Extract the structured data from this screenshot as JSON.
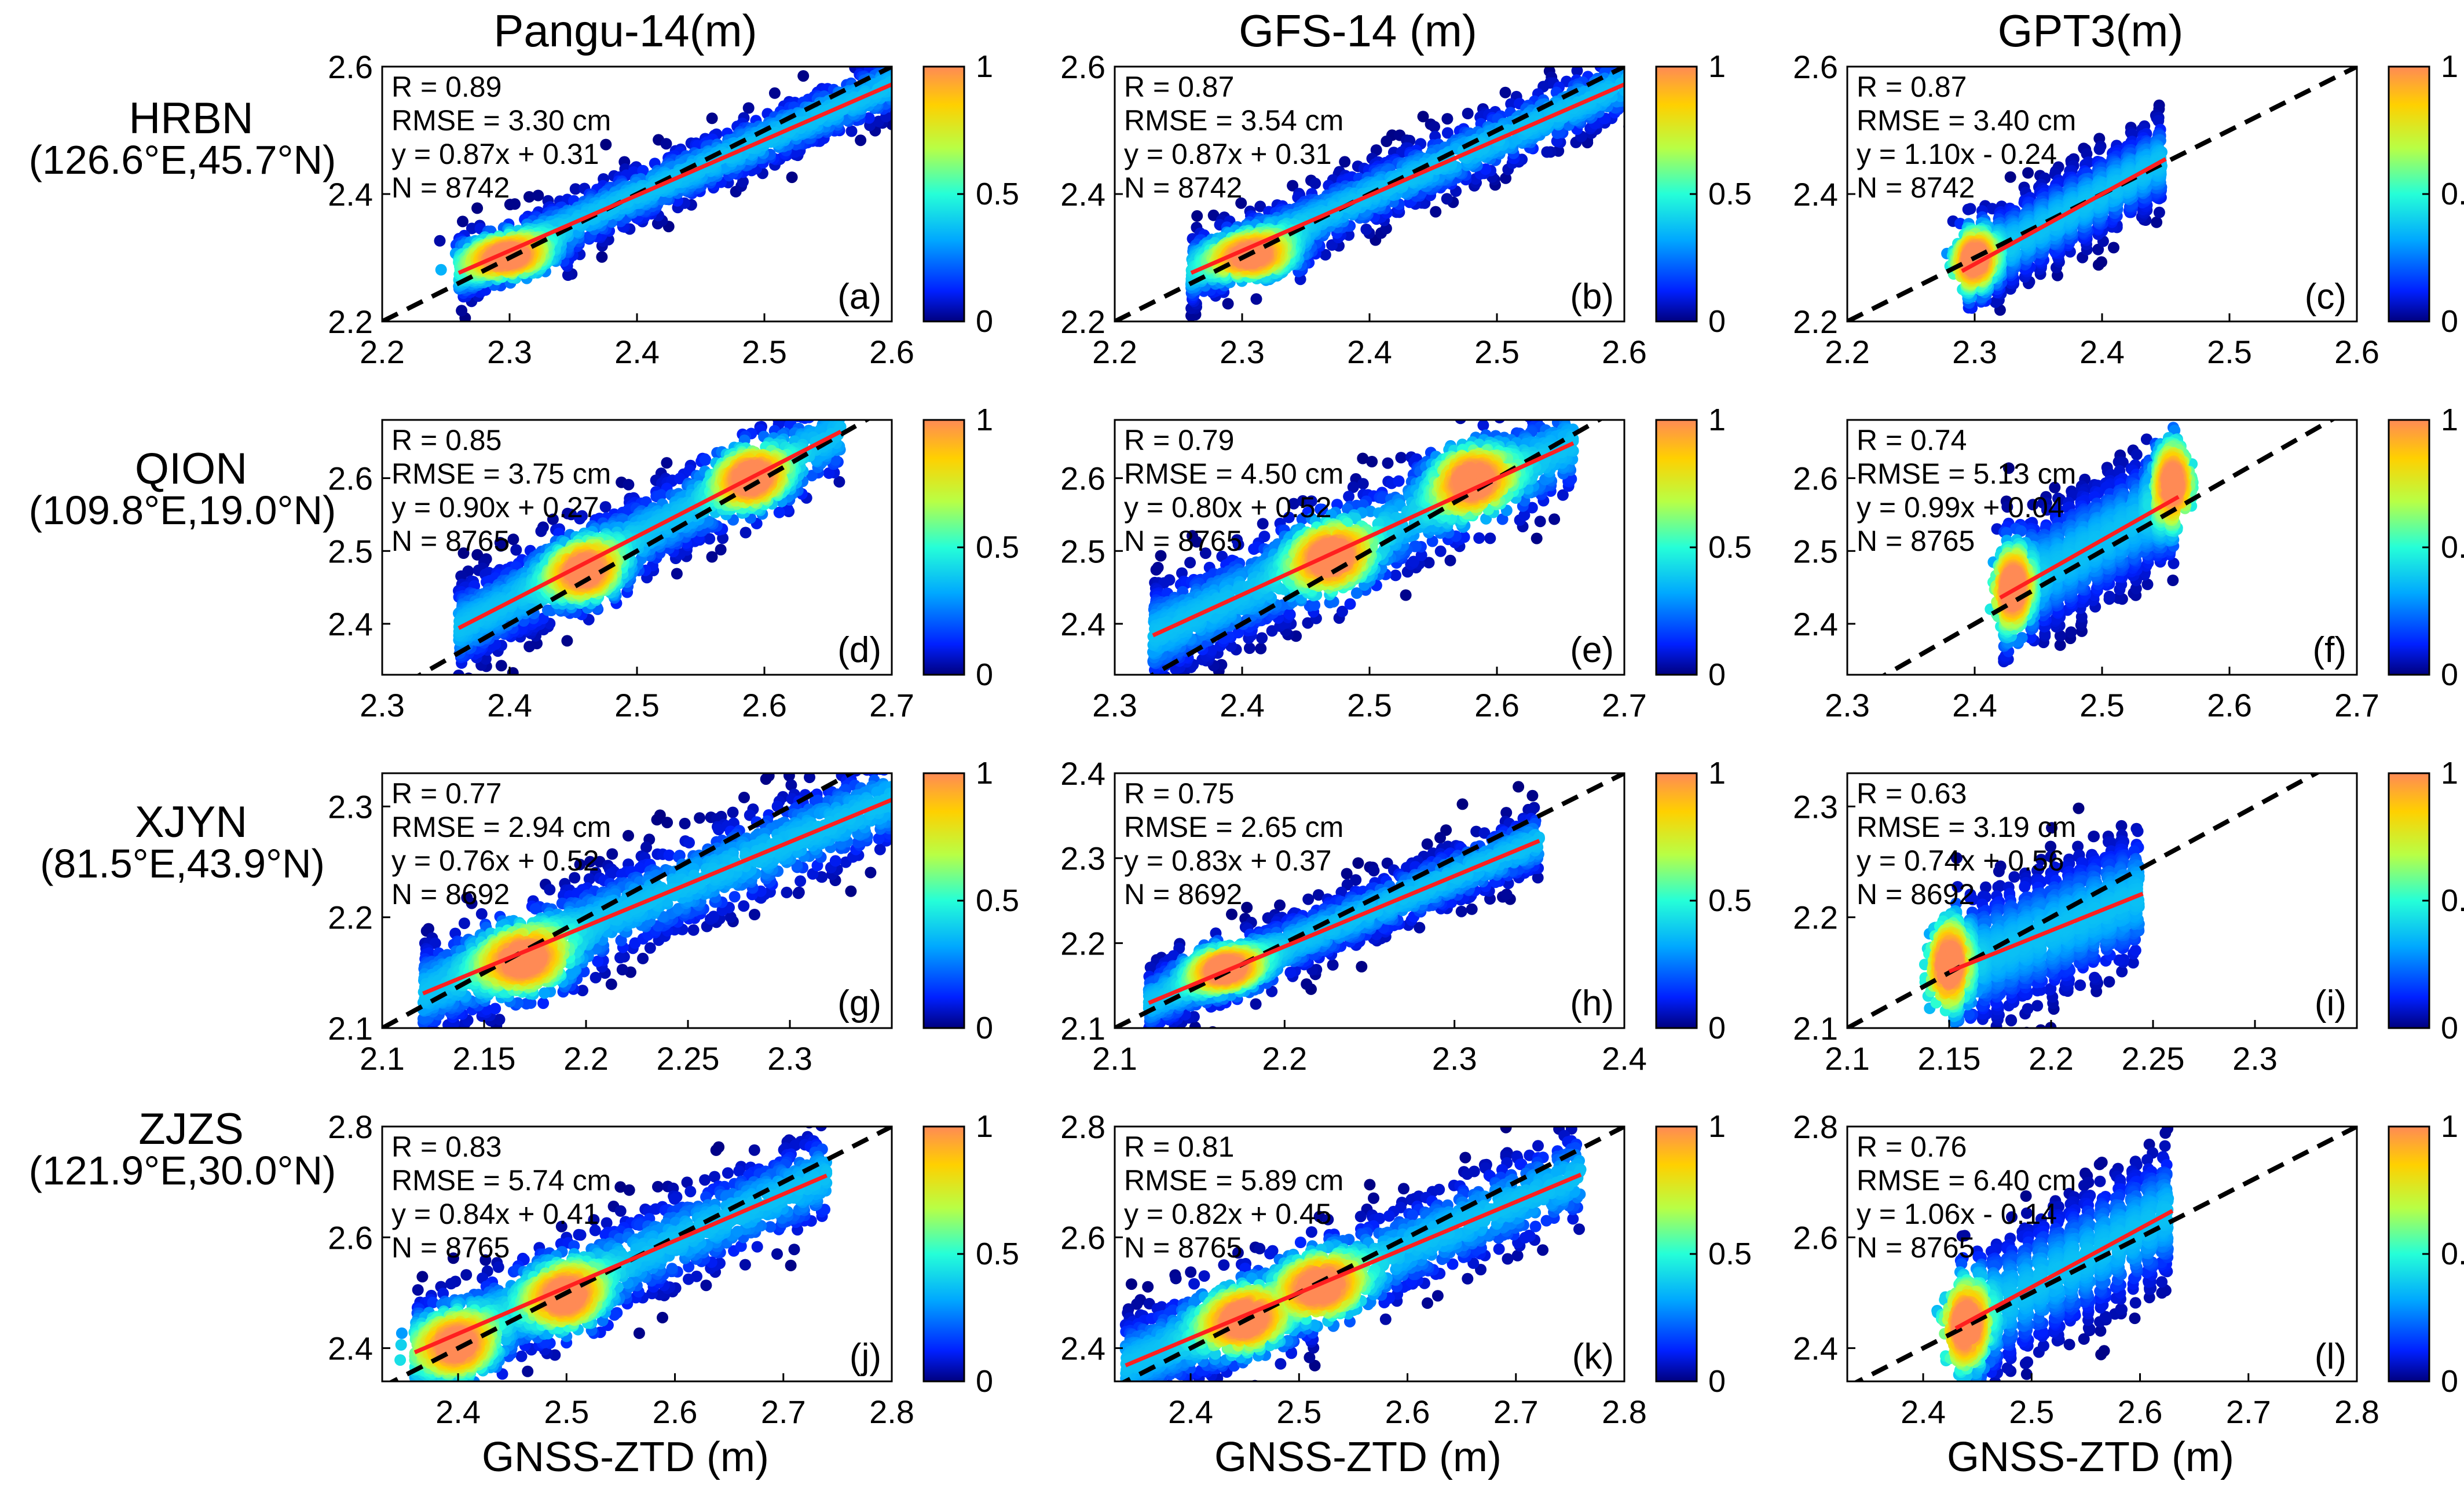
{
  "column_titles": [
    "Pangu-14(m)",
    "GFS-14 (m)",
    "GPT3(m)"
  ],
  "row_labels": [
    {
      "station": "HRBN",
      "coords": "(126.6°E,45.7°N)"
    },
    {
      "station": "QION",
      "coords": "(109.8°E,19.0°N)"
    },
    {
      "station": "XJYN",
      "coords": "(81.5°E,43.9°N)"
    },
    {
      "station": "ZJZS",
      "coords": "(121.9°E,30.0°N)"
    }
  ],
  "xlabel": "GNSS-ZTD (m)",
  "colorbar": {
    "ticks": [
      "0",
      "0.5",
      "1"
    ],
    "range": [
      0,
      1
    ]
  },
  "colors": {
    "fit_line": "#ff1f1f",
    "identity_line": "#000000",
    "cmap": [
      "#00007f",
      "#0020ff",
      "#00a8ff",
      "#25ffd8",
      "#b8ff45",
      "#ffd000",
      "#ff8a55"
    ]
  },
  "chart_data": [
    {
      "type": "scatter",
      "panel": "(a)",
      "row": 0,
      "col": 0,
      "xlim": [
        2.2,
        2.6
      ],
      "ylim": [
        2.2,
        2.6
      ],
      "xticks": [
        "2.2",
        "2.3",
        "2.4",
        "2.5",
        "2.6"
      ],
      "yticks": [
        "2.2",
        "2.4",
        "2.6"
      ],
      "stats": [
        "R = 0.89",
        "RMSE = 3.30 cm",
        "y = 0.87x + 0.31",
        "N = 8742"
      ],
      "fit": {
        "slope": 0.87,
        "intercept": 0.31
      },
      "data_range": [
        2.26,
        2.62
      ],
      "hotspots": [
        [
          2.3,
          2.3
        ]
      ],
      "spread": 0.028,
      "style": "normal"
    },
    {
      "type": "scatter",
      "panel": "(b)",
      "row": 0,
      "col": 1,
      "xlim": [
        2.2,
        2.6
      ],
      "ylim": [
        2.2,
        2.6
      ],
      "xticks": [
        "2.2",
        "2.3",
        "2.4",
        "2.5",
        "2.6"
      ],
      "yticks": [
        "2.2",
        "2.4",
        "2.6"
      ],
      "stats": [
        "R = 0.87",
        "RMSE = 3.54 cm",
        "y = 0.87x + 0.31",
        "N = 8742"
      ],
      "fit": {
        "slope": 0.87,
        "intercept": 0.31
      },
      "data_range": [
        2.26,
        2.62
      ],
      "hotspots": [
        [
          2.31,
          2.3
        ]
      ],
      "spread": 0.03,
      "style": "normal"
    },
    {
      "type": "scatter",
      "panel": "(c)",
      "row": 0,
      "col": 2,
      "xlim": [
        2.2,
        2.6
      ],
      "ylim": [
        2.2,
        2.6
      ],
      "xticks": [
        "2.2",
        "2.3",
        "2.4",
        "2.5",
        "2.6"
      ],
      "yticks": [
        "2.2",
        "2.4",
        "2.6"
      ],
      "stats": [
        "R = 0.87",
        "RMSE = 3.40 cm",
        "y = 1.10x - 0.24",
        "N = 8742"
      ],
      "fit": {
        "slope": 1.1,
        "intercept": -0.24
      },
      "data_range": [
        2.29,
        2.45
      ],
      "hotspots": [
        [
          2.3,
          2.3
        ]
      ],
      "spread": 0.04,
      "style": "columns"
    },
    {
      "type": "scatter",
      "panel": "(d)",
      "row": 1,
      "col": 0,
      "xlim": [
        2.3,
        2.7
      ],
      "ylim": [
        2.33,
        2.68
      ],
      "xticks": [
        "2.3",
        "2.4",
        "2.5",
        "2.6",
        "2.7"
      ],
      "yticks": [
        "2.4",
        "2.5",
        "2.6"
      ],
      "stats": [
        "R = 0.85",
        "RMSE = 3.75 cm",
        "y = 0.90x + 0.27",
        "N = 8765"
      ],
      "fit": {
        "slope": 0.9,
        "intercept": 0.27
      },
      "data_range": [
        2.36,
        2.66
      ],
      "hotspots": [
        [
          2.46,
          2.47
        ],
        [
          2.59,
          2.6
        ]
      ],
      "spread": 0.035,
      "style": "normal"
    },
    {
      "type": "scatter",
      "panel": "(e)",
      "row": 1,
      "col": 1,
      "xlim": [
        2.3,
        2.7
      ],
      "ylim": [
        2.33,
        2.68
      ],
      "xticks": [
        "2.3",
        "2.4",
        "2.5",
        "2.6",
        "2.7"
      ],
      "yticks": [
        "2.4",
        "2.5",
        "2.6"
      ],
      "stats": [
        "R = 0.79",
        "RMSE = 4.50 cm",
        "y = 0.80x + 0.52",
        "N = 8765"
      ],
      "fit": {
        "slope": 0.8,
        "intercept": 0.52
      },
      "data_range": [
        2.33,
        2.66
      ],
      "hotspots": [
        [
          2.47,
          2.49
        ],
        [
          2.58,
          2.6
        ]
      ],
      "spread": 0.04,
      "style": "normal"
    },
    {
      "type": "scatter",
      "panel": "(f)",
      "row": 1,
      "col": 2,
      "xlim": [
        2.3,
        2.7
      ],
      "ylim": [
        2.33,
        2.68
      ],
      "xticks": [
        "2.3",
        "2.4",
        "2.5",
        "2.6",
        "2.7"
      ],
      "yticks": [
        "2.4",
        "2.5",
        "2.6"
      ],
      "stats": [
        "R = 0.74",
        "RMSE = 5.13 cm",
        "y = 0.99x + 0.04",
        "N = 8765"
      ],
      "fit": {
        "slope": 0.99,
        "intercept": 0.04
      },
      "data_range": [
        2.42,
        2.56
      ],
      "hotspots": [
        [
          2.43,
          2.45
        ],
        [
          2.555,
          2.6
        ]
      ],
      "spread": 0.05,
      "style": "columns"
    },
    {
      "type": "scatter",
      "panel": "(g)",
      "row": 2,
      "col": 0,
      "xlim": [
        2.1,
        2.35
      ],
      "ylim": [
        2.1,
        2.33
      ],
      "xticks": [
        "2.1",
        "2.15",
        "2.2",
        "2.25",
        "2.3"
      ],
      "yticks": [
        "2.1",
        "2.2",
        "2.3"
      ],
      "stats": [
        "R = 0.77",
        "RMSE = 2.94 cm",
        "y = 0.76x + 0.52",
        "N = 8692"
      ],
      "fit": {
        "slope": 0.76,
        "intercept": 0.52
      },
      "data_range": [
        2.12,
        2.35
      ],
      "hotspots": [
        [
          2.17,
          2.16
        ]
      ],
      "spread": 0.025,
      "style": "normal"
    },
    {
      "type": "scatter",
      "panel": "(h)",
      "row": 2,
      "col": 1,
      "xlim": [
        2.1,
        2.4
      ],
      "ylim": [
        2.1,
        2.4
      ],
      "xticks": [
        "2.1",
        "2.2",
        "2.3",
        "2.4"
      ],
      "yticks": [
        "2.1",
        "2.2",
        "2.3",
        "2.4"
      ],
      "stats": [
        "R = 0.75",
        "RMSE = 2.65 cm",
        "y = 0.83x + 0.37",
        "N = 8692"
      ],
      "fit": {
        "slope": 0.83,
        "intercept": 0.37
      },
      "data_range": [
        2.12,
        2.35
      ],
      "hotspots": [
        [
          2.165,
          2.17
        ]
      ],
      "spread": 0.022,
      "style": "normal"
    },
    {
      "type": "scatter",
      "panel": "(i)",
      "row": 2,
      "col": 2,
      "xlim": [
        2.1,
        2.35
      ],
      "ylim": [
        2.1,
        2.33
      ],
      "xticks": [
        "2.1",
        "2.15",
        "2.2",
        "2.25",
        "2.3"
      ],
      "yticks": [
        "2.1",
        "2.2",
        "2.3"
      ],
      "stats": [
        "R = 0.63",
        "RMSE = 3.19 cm",
        "y = 0.74x + 0.56",
        "N = 8692"
      ],
      "fit": {
        "slope": 0.74,
        "intercept": 0.56
      },
      "data_range": [
        2.15,
        2.245
      ],
      "hotspots": [
        [
          2.15,
          2.16
        ]
      ],
      "spread": 0.035,
      "style": "columns"
    },
    {
      "type": "scatter",
      "panel": "(j)",
      "row": 3,
      "col": 0,
      "xlim": [
        2.33,
        2.8
      ],
      "ylim": [
        2.34,
        2.8
      ],
      "xticks": [
        "2.4",
        "2.5",
        "2.6",
        "2.7",
        "2.8"
      ],
      "yticks": [
        "2.4",
        "2.6",
        "2.8"
      ],
      "stats": [
        "R = 0.83",
        "RMSE = 5.74 cm",
        "y = 0.84x + 0.41",
        "N = 8765"
      ],
      "fit": {
        "slope": 0.84,
        "intercept": 0.41
      },
      "data_range": [
        2.36,
        2.74
      ],
      "hotspots": [
        [
          2.4,
          2.4
        ],
        [
          2.5,
          2.49
        ]
      ],
      "spread": 0.05,
      "style": "normal"
    },
    {
      "type": "scatter",
      "panel": "(k)",
      "row": 3,
      "col": 1,
      "xlim": [
        2.33,
        2.8
      ],
      "ylim": [
        2.34,
        2.8
      ],
      "xticks": [
        "2.4",
        "2.5",
        "2.6",
        "2.7",
        "2.8"
      ],
      "yticks": [
        "2.4",
        "2.6",
        "2.8"
      ],
      "stats": [
        "R = 0.81",
        "RMSE = 5.89 cm",
        "y = 0.82x + 0.45",
        "N = 8765"
      ],
      "fit": {
        "slope": 0.82,
        "intercept": 0.45
      },
      "data_range": [
        2.34,
        2.76
      ],
      "hotspots": [
        [
          2.45,
          2.45
        ],
        [
          2.52,
          2.51
        ]
      ],
      "spread": 0.05,
      "style": "normal"
    },
    {
      "type": "scatter",
      "panel": "(l)",
      "row": 3,
      "col": 2,
      "xlim": [
        2.33,
        2.8
      ],
      "ylim": [
        2.34,
        2.8
      ],
      "xticks": [
        "2.4",
        "2.5",
        "2.6",
        "2.7",
        "2.8"
      ],
      "yticks": [
        "2.4",
        "2.6",
        "2.8"
      ],
      "stats": [
        "R = 0.76",
        "RMSE = 6.40 cm",
        "y = 1.06x - 0.14",
        "N = 8765"
      ],
      "fit": {
        "slope": 1.06,
        "intercept": -0.14
      },
      "data_range": [
        2.43,
        2.63
      ],
      "hotspots": [
        [
          2.44,
          2.44
        ]
      ],
      "spread": 0.07,
      "style": "columns"
    }
  ]
}
